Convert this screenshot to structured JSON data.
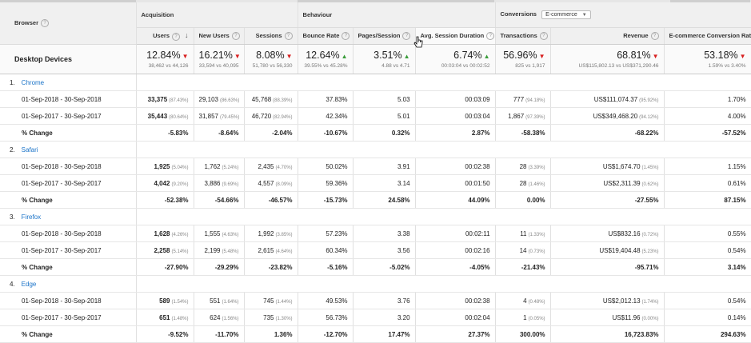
{
  "header": {
    "browser_label": "Browser",
    "acquisition_label": "Acquisition",
    "behaviour_label": "Behaviour",
    "conversions_label": "Conversions",
    "conversions_select": "E-commerce"
  },
  "metrics": [
    {
      "key": "users",
      "label": "Users"
    },
    {
      "key": "new_users",
      "label": "New Users"
    },
    {
      "key": "sessions",
      "label": "Sessions"
    },
    {
      "key": "bounce_rate",
      "label": "Bounce Rate"
    },
    {
      "key": "pages_session",
      "label": "Pages/Session"
    },
    {
      "key": "avg_duration",
      "label": "Avg. Session Duration"
    },
    {
      "key": "transactions",
      "label": "Transactions"
    },
    {
      "key": "revenue",
      "label": "Revenue"
    },
    {
      "key": "conv_rate",
      "label": "E-commerce Conversion Rate"
    }
  ],
  "summary": {
    "label": "Desktop Devices",
    "cells": [
      {
        "pct": "12.84%",
        "dir": "down",
        "sub": "38,462 vs 44,126"
      },
      {
        "pct": "16.21%",
        "dir": "down",
        "sub": "33,594 vs 40,095"
      },
      {
        "pct": "8.08%",
        "dir": "down",
        "sub": "51,780 vs 56,330"
      },
      {
        "pct": "12.64%",
        "dir": "up",
        "sub": "39.55% vs 45.28%"
      },
      {
        "pct": "3.51%",
        "dir": "up",
        "sub": "4.88 vs 4.71"
      },
      {
        "pct": "6.74%",
        "dir": "up",
        "sub": "00:03:04 vs 00:02:52"
      },
      {
        "pct": "56.96%",
        "dir": "down",
        "sub": "825 vs 1,917"
      },
      {
        "pct": "68.81%",
        "dir": "down",
        "sub": "US$115,802.13 vs US$371,290.46"
      },
      {
        "pct": "53.18%",
        "dir": "down",
        "sub": "1.59% vs 3.40%"
      }
    ]
  },
  "browsers": [
    {
      "index": "1.",
      "name": "Chrome",
      "rows": [
        {
          "label": "01-Sep-2018 - 30-Sep-2018",
          "cells": [
            {
              "v": "33,375",
              "p": "(87.43%)",
              "bold": true
            },
            {
              "v": "29,103",
              "p": "(86.63%)"
            },
            {
              "v": "45,768",
              "p": "(88.39%)"
            },
            {
              "v": "37.83%"
            },
            {
              "v": "5.03"
            },
            {
              "v": "00:03:09"
            },
            {
              "v": "777",
              "p": "(94.18%)"
            },
            {
              "v": "US$111,074.37",
              "p": "(95.92%)"
            },
            {
              "v": "1.70%"
            }
          ]
        },
        {
          "label": "01-Sep-2017 - 30-Sep-2017",
          "cells": [
            {
              "v": "35,443",
              "p": "(80.64%)",
              "bold": true
            },
            {
              "v": "31,857",
              "p": "(79.45%)"
            },
            {
              "v": "46,720",
              "p": "(82.94%)"
            },
            {
              "v": "42.34%"
            },
            {
              "v": "5.01"
            },
            {
              "v": "00:03:04"
            },
            {
              "v": "1,867",
              "p": "(97.39%)"
            },
            {
              "v": "US$349,468.20",
              "p": "(94.12%)"
            },
            {
              "v": "4.00%"
            }
          ]
        },
        {
          "label": "% Change",
          "pc": true,
          "cells": [
            {
              "v": "-5.83%"
            },
            {
              "v": "-8.64%"
            },
            {
              "v": "-2.04%"
            },
            {
              "v": "-10.67%"
            },
            {
              "v": "0.32%"
            },
            {
              "v": "2.87%"
            },
            {
              "v": "-58.38%"
            },
            {
              "v": "-68.22%"
            },
            {
              "v": "-57.52%"
            }
          ]
        }
      ]
    },
    {
      "index": "2.",
      "name": "Safari",
      "rows": [
        {
          "label": "01-Sep-2018 - 30-Sep-2018",
          "cells": [
            {
              "v": "1,925",
              "p": "(5.04%)",
              "bold": true
            },
            {
              "v": "1,762",
              "p": "(5.24%)"
            },
            {
              "v": "2,435",
              "p": "(4.70%)"
            },
            {
              "v": "50.02%"
            },
            {
              "v": "3.91"
            },
            {
              "v": "00:02:38"
            },
            {
              "v": "28",
              "p": "(3.39%)"
            },
            {
              "v": "US$1,674.70",
              "p": "(1.45%)"
            },
            {
              "v": "1.15%"
            }
          ]
        },
        {
          "label": "01-Sep-2017 - 30-Sep-2017",
          "cells": [
            {
              "v": "4,042",
              "p": "(9.20%)",
              "bold": true
            },
            {
              "v": "3,886",
              "p": "(9.69%)"
            },
            {
              "v": "4,557",
              "p": "(8.09%)"
            },
            {
              "v": "59.36%"
            },
            {
              "v": "3.14"
            },
            {
              "v": "00:01:50"
            },
            {
              "v": "28",
              "p": "(1.46%)"
            },
            {
              "v": "US$2,311.39",
              "p": "(0.62%)"
            },
            {
              "v": "0.61%"
            }
          ]
        },
        {
          "label": "% Change",
          "pc": true,
          "cells": [
            {
              "v": "-52.38%"
            },
            {
              "v": "-54.66%"
            },
            {
              "v": "-46.57%"
            },
            {
              "v": "-15.73%"
            },
            {
              "v": "24.58%"
            },
            {
              "v": "44.09%"
            },
            {
              "v": "0.00%"
            },
            {
              "v": "-27.55%"
            },
            {
              "v": "87.15%"
            }
          ]
        }
      ]
    },
    {
      "index": "3.",
      "name": "Firefox",
      "rows": [
        {
          "label": "01-Sep-2018 - 30-Sep-2018",
          "cells": [
            {
              "v": "1,628",
              "p": "(4.26%)",
              "bold": true
            },
            {
              "v": "1,555",
              "p": "(4.63%)"
            },
            {
              "v": "1,992",
              "p": "(3.85%)"
            },
            {
              "v": "57.23%"
            },
            {
              "v": "3.38"
            },
            {
              "v": "00:02:11"
            },
            {
              "v": "11",
              "p": "(1.33%)"
            },
            {
              "v": "US$832.16",
              "p": "(0.72%)"
            },
            {
              "v": "0.55%"
            }
          ]
        },
        {
          "label": "01-Sep-2017 - 30-Sep-2017",
          "cells": [
            {
              "v": "2,258",
              "p": "(5.14%)",
              "bold": true
            },
            {
              "v": "2,199",
              "p": "(5.48%)"
            },
            {
              "v": "2,615",
              "p": "(4.64%)"
            },
            {
              "v": "60.34%"
            },
            {
              "v": "3.56"
            },
            {
              "v": "00:02:16"
            },
            {
              "v": "14",
              "p": "(0.73%)"
            },
            {
              "v": "US$19,404.48",
              "p": "(5.23%)"
            },
            {
              "v": "0.54%"
            }
          ]
        },
        {
          "label": "% Change",
          "pc": true,
          "cells": [
            {
              "v": "-27.90%"
            },
            {
              "v": "-29.29%"
            },
            {
              "v": "-23.82%"
            },
            {
              "v": "-5.16%"
            },
            {
              "v": "-5.02%"
            },
            {
              "v": "-4.05%"
            },
            {
              "v": "-21.43%"
            },
            {
              "v": "-95.71%"
            },
            {
              "v": "3.14%"
            }
          ]
        }
      ]
    },
    {
      "index": "4.",
      "name": "Edge",
      "rows": [
        {
          "label": "01-Sep-2018 - 30-Sep-2018",
          "cells": [
            {
              "v": "589",
              "p": "(1.54%)",
              "bold": true
            },
            {
              "v": "551",
              "p": "(1.64%)"
            },
            {
              "v": "745",
              "p": "(1.44%)"
            },
            {
              "v": "49.53%"
            },
            {
              "v": "3.76"
            },
            {
              "v": "00:02:38"
            },
            {
              "v": "4",
              "p": "(0.48%)"
            },
            {
              "v": "US$2,012.13",
              "p": "(1.74%)"
            },
            {
              "v": "0.54%"
            }
          ]
        },
        {
          "label": "01-Sep-2017 - 30-Sep-2017",
          "cells": [
            {
              "v": "651",
              "p": "(1.48%)",
              "bold": true
            },
            {
              "v": "624",
              "p": "(1.56%)"
            },
            {
              "v": "735",
              "p": "(1.30%)"
            },
            {
              "v": "56.73%"
            },
            {
              "v": "3.20"
            },
            {
              "v": "00:02:04"
            },
            {
              "v": "1",
              "p": "(0.05%)"
            },
            {
              "v": "US$11.96",
              "p": "(0.00%)"
            },
            {
              "v": "0.14%"
            }
          ]
        },
        {
          "label": "% Change",
          "pc": true,
          "cells": [
            {
              "v": "-9.52%"
            },
            {
              "v": "-11.70%"
            },
            {
              "v": "1.36%"
            },
            {
              "v": "-12.70%"
            },
            {
              "v": "17.47%"
            },
            {
              "v": "27.37%"
            },
            {
              "v": "300.00%"
            },
            {
              "v": "16,723.83%"
            },
            {
              "v": "294.63%"
            }
          ]
        }
      ]
    }
  ]
}
